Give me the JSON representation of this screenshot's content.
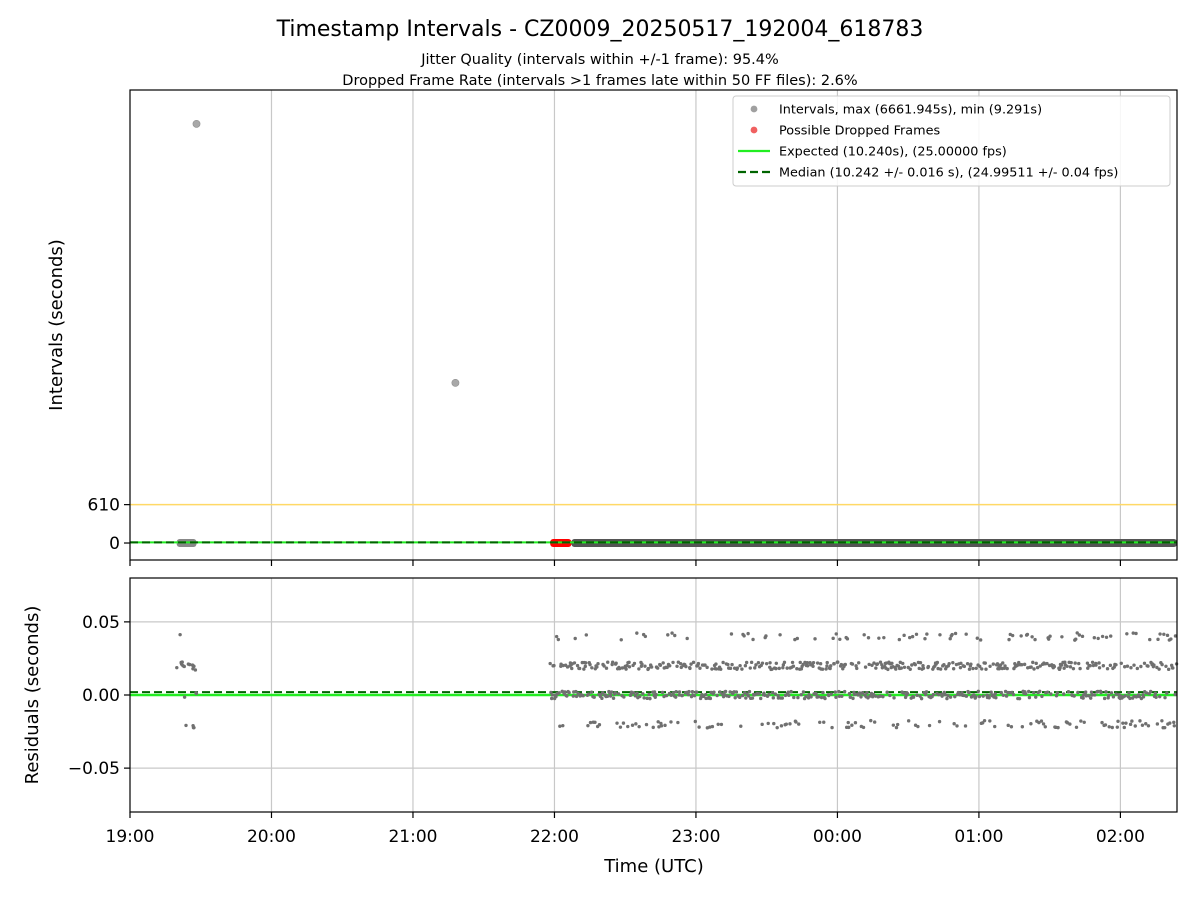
{
  "title": "Timestamp Intervals - CZ0009_20250517_192004_618783",
  "subtitle_lines": [
    "Jitter Quality (intervals within +/-1 frame): 95.4%",
    "Dropped Frame Rate (intervals >1 frames late within 50 FF files): 2.6%"
  ],
  "chart_data": [
    {
      "type": "scatter",
      "panel": "intervals",
      "ylabel": "Intervals (seconds)",
      "ylim": [
        -270,
        7200
      ],
      "yticks": [
        0,
        610
      ],
      "ytick_labels": [
        "0",
        "610"
      ],
      "threshold_line": {
        "value": 610,
        "color": "#ffd966"
      },
      "legend_position": "upper-right",
      "legend": [
        {
          "label": "Intervals, max (6661.945s), min (9.291s)",
          "kind": "dot",
          "color": "#a0a0a0"
        },
        {
          "label": "Possible Dropped Frames",
          "kind": "dot",
          "color": "#f06060"
        },
        {
          "label": "Expected (10.240s), (25.00000 fps)",
          "kind": "line",
          "color": "#22ee22"
        },
        {
          "label": "Median (10.242 +/- 0.016 s), (24.99511 +/- 0.04 fps)",
          "kind": "dashed",
          "color": "#006400"
        }
      ],
      "expected_interval": 10.24,
      "median_interval": 10.242,
      "outliers": [
        {
          "time_hours": 19.47,
          "interval": 6661.945
        },
        {
          "time_hours": 21.3,
          "interval": 2545
        }
      ],
      "interval_bands": [
        {
          "start_hours": 19.33,
          "end_hours": 19.47,
          "color": "#888888"
        },
        {
          "start_hours": 21.97,
          "end_hours": 22.12,
          "color": "#ff0000"
        },
        {
          "start_hours": 22.12,
          "end_hours": 26.4,
          "color": "#555555"
        }
      ]
    },
    {
      "type": "scatter",
      "panel": "residuals",
      "xlabel": "Time (UTC)",
      "ylabel": "Residuals (seconds)",
      "ylim": [
        -0.08,
        0.08
      ],
      "yticks": [
        0.05,
        0.0,
        -0.05
      ],
      "ytick_labels": [
        "0.05",
        "0.00",
        "−0.05"
      ],
      "xlim_hours": [
        19.0,
        26.4
      ],
      "xticks_hours": [
        19,
        20,
        21,
        22,
        23,
        24,
        25,
        26
      ],
      "xtick_labels": [
        "19:00",
        "20:00",
        "21:00",
        "22:00",
        "23:00",
        "00:00",
        "01:00",
        "02:00"
      ],
      "expected_residual": 0.0,
      "median_residual": 0.002,
      "residual_levels": [
        0.04,
        0.02,
        0.0,
        -0.02
      ],
      "early_cluster_hours": [
        19.33,
        19.47
      ],
      "main_cluster_hours": [
        21.97,
        26.4
      ]
    }
  ]
}
